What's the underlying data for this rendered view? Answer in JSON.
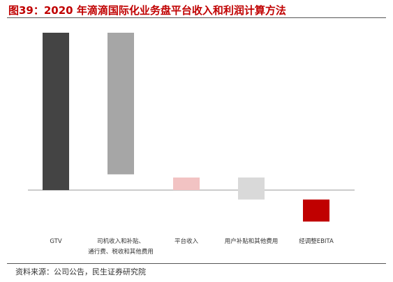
{
  "title": "图39：2020 年滴滴国际化业务盘平台收入和利润计算方法",
  "source": "资料来源：公司公告，民生证券研究院",
  "chart_data": {
    "type": "bar",
    "categories": [
      "GTV",
      [
        "司机收入和补贴、",
        "通行费、税收和其他费用"
      ],
      "平台收入",
      "用户补贴和其他费用",
      "经调整EBITA"
    ],
    "values": [
      100,
      -90,
      8,
      -14,
      -14
    ],
    "colors": [
      "#444444",
      "#a6a6a6",
      "#f2c3c3",
      "#d9d9d9",
      "#c00000"
    ],
    "axes": "hidden"
  }
}
